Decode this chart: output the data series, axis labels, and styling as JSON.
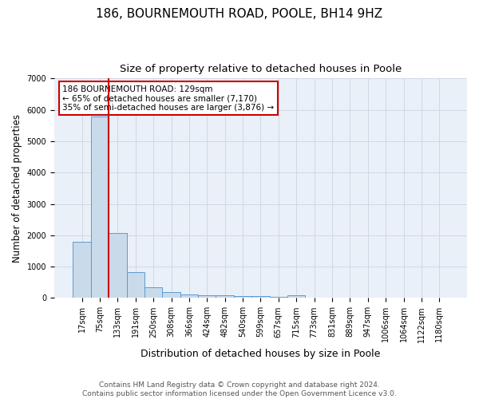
{
  "title1": "186, BOURNEMOUTH ROAD, POOLE, BH14 9HZ",
  "title2": "Size of property relative to detached houses in Poole",
  "xlabel": "Distribution of detached houses by size in Poole",
  "ylabel": "Number of detached properties",
  "categories": [
    "17sqm",
    "75sqm",
    "133sqm",
    "191sqm",
    "250sqm",
    "308sqm",
    "366sqm",
    "424sqm",
    "482sqm",
    "540sqm",
    "599sqm",
    "657sqm",
    "715sqm",
    "773sqm",
    "831sqm",
    "889sqm",
    "947sqm",
    "1006sqm",
    "1064sqm",
    "1122sqm",
    "1180sqm"
  ],
  "values": [
    1780,
    5780,
    2060,
    820,
    340,
    200,
    110,
    90,
    75,
    60,
    50,
    45,
    80,
    0,
    0,
    0,
    0,
    0,
    0,
    0,
    0
  ],
  "bar_color": "#c9daea",
  "bar_edge_color": "#5b9bd5",
  "vline_x": 1.5,
  "vline_color": "#cc0000",
  "annotation_text": "186 BOURNEMOUTH ROAD: 129sqm\n← 65% of detached houses are smaller (7,170)\n35% of semi-detached houses are larger (3,876) →",
  "annotation_box_color": "#ffffff",
  "annotation_box_edge_color": "#cc0000",
  "ylim": [
    0,
    7000
  ],
  "yticks": [
    0,
    1000,
    2000,
    3000,
    4000,
    5000,
    6000,
    7000
  ],
  "grid_color": "#d0d8e4",
  "background_color": "#eaf0f8",
  "footer": "Contains HM Land Registry data © Crown copyright and database right 2024.\nContains public sector information licensed under the Open Government Licence v3.0.",
  "title1_fontsize": 11,
  "title2_fontsize": 9.5,
  "ylabel_fontsize": 8.5,
  "xlabel_fontsize": 9,
  "tick_fontsize": 7,
  "annotation_fontsize": 7.5,
  "footer_fontsize": 6.5
}
